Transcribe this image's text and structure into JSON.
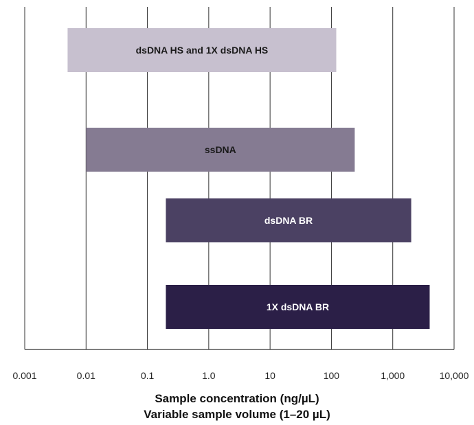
{
  "chart_data": {
    "type": "bar",
    "orientation": "horizontal",
    "x_scale": "log",
    "xlim": [
      0.001,
      10000
    ],
    "grid": true,
    "xlabel": [
      "Sample concentration (ng/µL)",
      "Variable sample volume (1–20 µL)"
    ],
    "tick_values": [
      0.001,
      0.01,
      0.1,
      1,
      10,
      100,
      1000,
      10000
    ],
    "tick_labels": [
      "0.001",
      "0.01",
      "0.1",
      "1.0",
      "10",
      "100",
      "1,000",
      "10,000"
    ],
    "categories": [
      "dsDNA HS and 1X dsDNA HS",
      "ssDNA",
      "dsDNA BR",
      "1X dsDNA BR"
    ],
    "series": [
      {
        "values": [
          {
            "label": "dsDNA HS and 1X dsDNA HS",
            "low": 0.005,
            "high": 120
          },
          {
            "label": "ssDNA",
            "low": 0.01,
            "high": 240
          },
          {
            "label": "dsDNA BR",
            "low": 0.2,
            "high": 2000
          },
          {
            "label": "1X dsDNA BR",
            "low": 0.2,
            "high": 4000
          }
        ]
      }
    ],
    "colors": {
      "bars": [
        "#c7c0cf",
        "#857b92",
        "#4b4163",
        "#2b1f47"
      ],
      "bar_labels": [
        "#1a1a1a",
        "#1a1a1a",
        "#ffffff",
        "#ffffff"
      ],
      "grid": "#333333",
      "axis": "#333333"
    }
  }
}
